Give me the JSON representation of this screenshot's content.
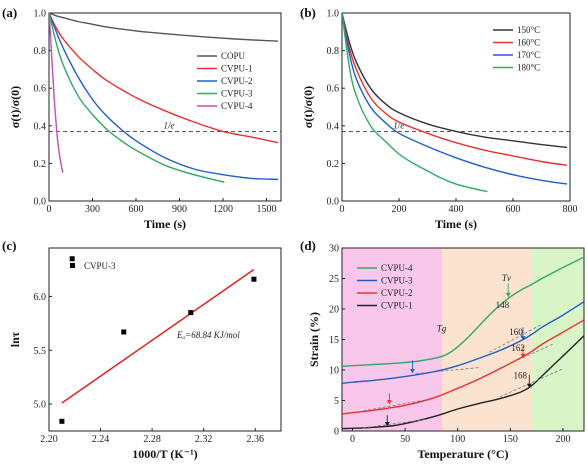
{
  "figure": {
    "panels": {
      "a": {
        "label": "(a)"
      },
      "b": {
        "label": "(b)"
      },
      "c": {
        "label": "(c)"
      },
      "d": {
        "label": "(d)"
      }
    }
  },
  "chart_data": [
    {
      "id": "a",
      "type": "line",
      "title": "",
      "xlabel": "Time (s)",
      "ylabel": "σ(t)/σ(0)",
      "xlim": [
        0,
        1600
      ],
      "ylim": [
        0,
        1.0
      ],
      "xticks": [
        0,
        300,
        600,
        900,
        1200,
        1500
      ],
      "yticks": [
        0.0,
        0.2,
        0.4,
        0.6,
        0.8,
        1.0
      ],
      "legend_position": "right",
      "reference_line": {
        "y": 0.37,
        "label": "1/e",
        "style": "dashed"
      },
      "series": [
        {
          "name": "COPU",
          "color": "#555555",
          "x": [
            0,
            50,
            100,
            200,
            300,
            400,
            600,
            800,
            1000,
            1200,
            1400,
            1580
          ],
          "y": [
            1.0,
            0.985,
            0.975,
            0.955,
            0.94,
            0.925,
            0.905,
            0.89,
            0.877,
            0.866,
            0.857,
            0.85
          ]
        },
        {
          "name": "CVPU-1",
          "color": "#e83030",
          "x": [
            0,
            50,
            100,
            200,
            300,
            400,
            600,
            800,
            1000,
            1200,
            1400,
            1580
          ],
          "y": [
            1.0,
            0.92,
            0.86,
            0.77,
            0.7,
            0.64,
            0.55,
            0.48,
            0.42,
            0.37,
            0.34,
            0.31
          ]
        },
        {
          "name": "CVPU-2",
          "color": "#1f5fc8",
          "x": [
            0,
            50,
            100,
            200,
            300,
            400,
            500,
            600,
            800,
            1000,
            1200,
            1400,
            1580
          ],
          "y": [
            1.0,
            0.9,
            0.81,
            0.66,
            0.54,
            0.45,
            0.38,
            0.32,
            0.23,
            0.17,
            0.14,
            0.12,
            0.115
          ]
        },
        {
          "name": "CVPU-3",
          "color": "#2eaa63",
          "x": [
            0,
            50,
            100,
            200,
            300,
            400,
            500,
            600,
            800,
            1000,
            1210
          ],
          "y": [
            1.0,
            0.84,
            0.72,
            0.56,
            0.46,
            0.38,
            0.32,
            0.27,
            0.19,
            0.14,
            0.1
          ]
        },
        {
          "name": "CVPU-4",
          "color": "#c050b8",
          "x": [
            0,
            10,
            20,
            30,
            40,
            50,
            60,
            70,
            80,
            90,
            95
          ],
          "y": [
            1.0,
            0.88,
            0.75,
            0.62,
            0.5,
            0.4,
            0.32,
            0.26,
            0.21,
            0.17,
            0.15
          ]
        }
      ]
    },
    {
      "id": "b",
      "type": "line",
      "title": "",
      "xlabel": "Time (s)",
      "ylabel": "σ(t)/σ(0)",
      "xlim": [
        0,
        800
      ],
      "ylim": [
        0,
        1.0
      ],
      "xticks": [
        0,
        200,
        400,
        600,
        800
      ],
      "yticks": [
        0.0,
        0.2,
        0.4,
        0.6,
        0.8,
        1.0
      ],
      "legend_position": "top-right",
      "reference_line": {
        "y": 0.37,
        "label": "1/e",
        "style": "dashed"
      },
      "series": [
        {
          "name": "150°C",
          "color": "#333333",
          "x": [
            0,
            25,
            50,
            100,
            150,
            200,
            300,
            400,
            500,
            600,
            700,
            790
          ],
          "y": [
            1.0,
            0.85,
            0.74,
            0.6,
            0.52,
            0.47,
            0.41,
            0.37,
            0.34,
            0.32,
            0.3,
            0.285
          ]
        },
        {
          "name": "160°C",
          "color": "#e83030",
          "x": [
            0,
            25,
            50,
            100,
            150,
            200,
            300,
            400,
            500,
            600,
            700,
            790
          ],
          "y": [
            1.0,
            0.82,
            0.7,
            0.55,
            0.47,
            0.42,
            0.36,
            0.31,
            0.27,
            0.24,
            0.21,
            0.19
          ]
        },
        {
          "name": "170°C",
          "color": "#1f5fc8",
          "x": [
            0,
            25,
            50,
            100,
            150,
            200,
            300,
            400,
            500,
            600,
            700,
            790
          ],
          "y": [
            1.0,
            0.79,
            0.65,
            0.5,
            0.42,
            0.36,
            0.29,
            0.23,
            0.18,
            0.14,
            0.11,
            0.09
          ]
        },
        {
          "name": "180°C",
          "color": "#2eaa63",
          "x": [
            0,
            25,
            50,
            100,
            150,
            200,
            250,
            300,
            350,
            400,
            450,
            510
          ],
          "y": [
            1.0,
            0.72,
            0.56,
            0.4,
            0.32,
            0.25,
            0.2,
            0.16,
            0.12,
            0.09,
            0.07,
            0.05
          ]
        }
      ]
    },
    {
      "id": "c",
      "type": "scatter",
      "title": "",
      "xlabel": "1000/T (K⁻¹)",
      "ylabel": "lnτ",
      "xlim": [
        2.2,
        2.38
      ],
      "ylim": [
        4.75,
        6.45
      ],
      "xticks": [
        2.2,
        2.24,
        2.28,
        2.32,
        2.36
      ],
      "yticks": [
        5.0,
        5.5,
        6.0
      ],
      "legend_position": "top-left",
      "series": [
        {
          "name": "CVPU-3",
          "color": "#000000",
          "x": [
            2.21,
            2.218,
            2.258,
            2.31,
            2.359
          ],
          "y": [
            4.84,
            6.35,
            5.67,
            5.85,
            6.16
          ]
        }
      ],
      "fit_line": {
        "color": "#e02020",
        "x": [
          2.21,
          2.359
        ],
        "y": [
          5.01,
          6.25
        ]
      },
      "annotation": "Eₐ=68.84 KJ/mol"
    },
    {
      "id": "d",
      "type": "line",
      "title": "",
      "xlabel": "Temperature (°C)",
      "ylabel": "Strain (%)",
      "xlim": [
        -10,
        220
      ],
      "ylim": [
        0,
        30
      ],
      "xticks": [
        0,
        50,
        100,
        150,
        200
      ],
      "yticks": [
        0,
        5,
        10,
        15,
        20,
        25,
        30
      ],
      "legend_position": "top-left",
      "regions": [
        {
          "from": -10,
          "to": 85,
          "color": "#f9c6ec"
        },
        {
          "from": 85,
          "to": 170,
          "color": "#fbe3cf"
        },
        {
          "from": 170,
          "to": 220,
          "color": "#d9f5c8"
        }
      ],
      "annotations": {
        "tg": "Tg",
        "tv": "Tv",
        "v148": "148",
        "v160": "160",
        "v162": "162",
        "v168": "168"
      },
      "series": [
        {
          "name": "CVPU-4",
          "color": "#2eaa63",
          "x": [
            -10,
            0,
            20,
            40,
            60,
            80,
            90,
            100,
            110,
            120,
            130,
            140,
            150,
            160,
            170,
            180,
            200,
            220
          ],
          "y": [
            10.6,
            10.7,
            10.9,
            11.1,
            11.4,
            12.0,
            12.6,
            13.8,
            15.4,
            17.2,
            19.0,
            20.6,
            22.0,
            23.1,
            24.0,
            25.0,
            26.8,
            28.5
          ]
        },
        {
          "name": "CVPU-3",
          "color": "#1f5fc8",
          "x": [
            -10,
            0,
            20,
            40,
            60,
            80,
            100,
            120,
            140,
            160,
            170,
            180,
            200,
            220
          ],
          "y": [
            7.8,
            8.0,
            8.3,
            8.7,
            9.2,
            9.8,
            10.7,
            11.9,
            13.2,
            14.8,
            15.8,
            17.0,
            19.0,
            21.2
          ]
        },
        {
          "name": "CVPU-2",
          "color": "#e83030",
          "x": [
            -10,
            0,
            20,
            40,
            60,
            80,
            100,
            120,
            140,
            160,
            170,
            180,
            200,
            220
          ],
          "y": [
            2.8,
            3.0,
            3.4,
            3.9,
            4.6,
            5.6,
            7.0,
            8.5,
            10.2,
            12.0,
            13.0,
            14.2,
            16.2,
            18.2
          ]
        },
        {
          "name": "CVPU-1",
          "color": "#222222",
          "x": [
            -10,
            0,
            20,
            40,
            60,
            80,
            100,
            120,
            140,
            160,
            170,
            180,
            200,
            220
          ],
          "y": [
            0.4,
            0.45,
            0.6,
            0.9,
            1.6,
            2.5,
            3.6,
            4.5,
            5.3,
            6.4,
            7.4,
            9.0,
            12.3,
            15.6
          ]
        }
      ]
    }
  ]
}
